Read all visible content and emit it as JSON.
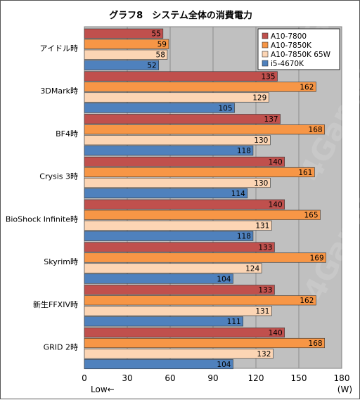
{
  "chart_data": {
    "type": "bar",
    "orientation": "horizontal",
    "title": "グラフ8　システム全体の消費電力",
    "categories": [
      "アイドル時",
      "3DMark時",
      "BF4時",
      "Crysis 3時",
      "BioShock Infinite時",
      "Skyrim時",
      "新生FFXIV時",
      "GRID 2時"
    ],
    "series": [
      {
        "name": "A10-7800",
        "values": [
          55,
          135,
          137,
          140,
          140,
          133,
          133,
          140
        ],
        "color": "#c0504d"
      },
      {
        "name": "A10-7850K",
        "values": [
          59,
          162,
          168,
          161,
          165,
          169,
          162,
          168
        ],
        "color": "#f79646"
      },
      {
        "name": "A10-7850K 65W",
        "values": [
          58,
          129,
          130,
          130,
          131,
          124,
          131,
          132
        ],
        "color": "#fcd5b4"
      },
      {
        "name": "i5-4670K",
        "values": [
          52,
          105,
          118,
          114,
          118,
          104,
          111,
          104
        ],
        "color": "#4f81bd"
      }
    ],
    "xlim": [
      0,
      180
    ],
    "xticks": [
      "0",
      "30",
      "60",
      "90",
      "120",
      "150",
      "180"
    ],
    "xunit": "(W)",
    "note": "Low←",
    "legend_position": "top-right",
    "plot_background": "#c0c0c0",
    "grid": true,
    "watermark": "4Gamer.net"
  }
}
